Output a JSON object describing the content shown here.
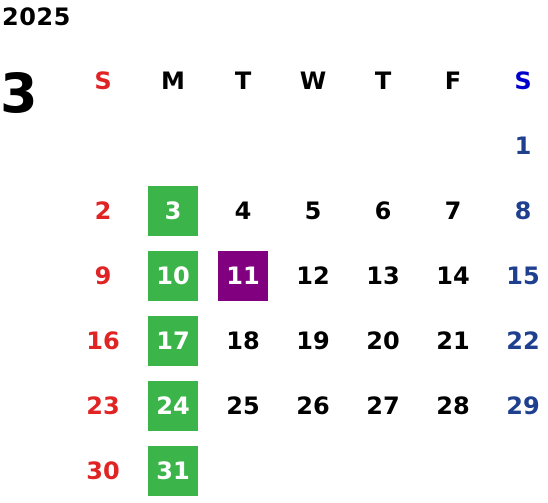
{
  "year": "2025",
  "month": "3",
  "weekdays": [
    {
      "label": "S",
      "kind": "sun"
    },
    {
      "label": "M",
      "kind": "week"
    },
    {
      "label": "T",
      "kind": "week"
    },
    {
      "label": "W",
      "kind": "week"
    },
    {
      "label": "T",
      "kind": "week"
    },
    {
      "label": "F",
      "kind": "week"
    },
    {
      "label": "S",
      "kind": "sat"
    }
  ],
  "first_weekday_index": 6,
  "days_in_month": 31,
  "highlight_green_days": [
    "3",
    "10",
    "17",
    "24",
    "31"
  ],
  "highlight_purple_days": [
    "11"
  ],
  "colors": {
    "sunday": "#e02424",
    "saturday": "#1f3f8f",
    "saturday_header": "#0000cc",
    "green_highlight": "#3bb54a",
    "purple_highlight": "#800080",
    "highlight_text": "#ffffff",
    "weekday_text": "#000000"
  }
}
